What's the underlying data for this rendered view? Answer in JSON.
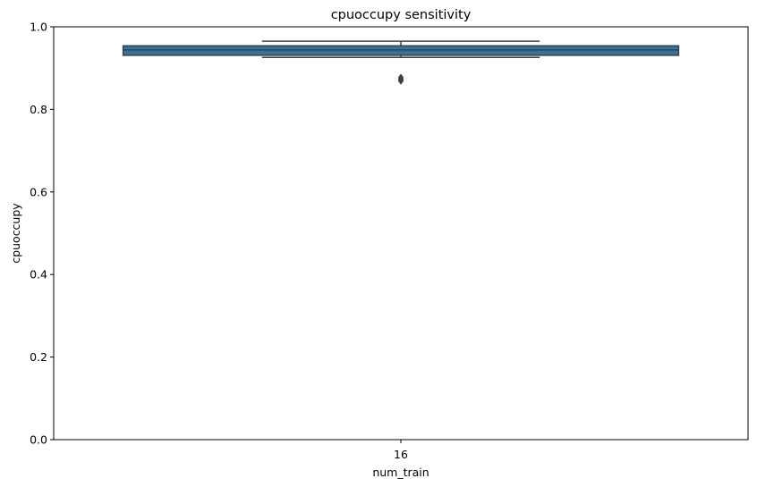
{
  "chart_data": {
    "type": "box",
    "title": "cpuoccupy sensitivity",
    "xlabel": "num_train",
    "ylabel": "cpuoccupy",
    "categories": [
      "16"
    ],
    "ylim": [
      0.0,
      1.0
    ],
    "yticks": [
      0.0,
      0.2,
      0.4,
      0.6,
      0.8,
      1.0
    ],
    "ytick_labels": [
      "0.0",
      "0.2",
      "0.4",
      "0.6",
      "0.8",
      "1.0"
    ],
    "grid": false,
    "legend": "none",
    "boxes": [
      {
        "category": "16",
        "whisker_low": 0.926,
        "q1": 0.931,
        "median": 0.944,
        "q3": 0.954,
        "whisker_high": 0.965,
        "outliers": [
          0.869,
          0.873,
          0.877
        ]
      }
    ],
    "colors": {
      "box_fill": "#3274a1",
      "line": "#3f3f3f",
      "outlier": "#3f3f3f"
    }
  }
}
